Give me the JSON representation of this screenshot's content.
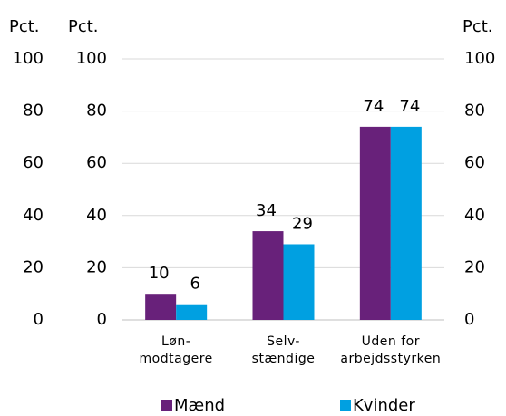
{
  "chart_data": {
    "type": "bar",
    "categories": [
      "Løn-\nmodtagere",
      "Selv-\nstændige",
      "Uden for\narbejdsstyrken"
    ],
    "series": [
      {
        "name": "Mænd",
        "color": "#68217a",
        "values": [
          10,
          34,
          74
        ]
      },
      {
        "name": "Kvinder",
        "color": "#00a0e1",
        "values": [
          6,
          29,
          74
        ]
      }
    ],
    "ylabel": "Pct.",
    "y2label": "Pct.",
    "y3label": "Pct.",
    "ylim": [
      0,
      100
    ],
    "yticks": [
      0,
      20,
      40,
      60,
      80,
      100
    ],
    "y2lim": [
      0,
      100
    ],
    "y2ticks": [
      0,
      20,
      40,
      60,
      80,
      100
    ],
    "y3ticks": [
      0,
      20,
      40,
      60,
      80,
      100
    ],
    "grid": true,
    "legend": "bottom"
  }
}
